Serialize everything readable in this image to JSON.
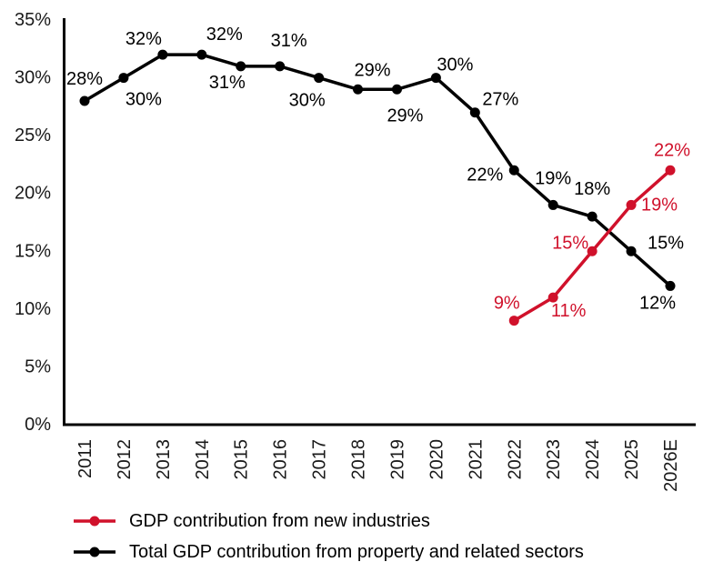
{
  "chart_data": {
    "type": "line",
    "title": "",
    "xlabel": "",
    "ylabel": "",
    "grid": false,
    "legend_position": "bottom-left",
    "value_suffix": "%",
    "categories": [
      "2011",
      "2012",
      "2013",
      "2014",
      "2015",
      "2016",
      "2017",
      "2018",
      "2019",
      "2020",
      "2021",
      "2022",
      "2023",
      "2024",
      "2025",
      "2026E"
    ],
    "y_axis": {
      "min": 0,
      "max": 35,
      "ticks": [
        {
          "value": 0,
          "label": "0%"
        },
        {
          "value": 5,
          "label": "5%"
        },
        {
          "value": 10,
          "label": "10%"
        },
        {
          "value": 15,
          "label": "15%"
        },
        {
          "value": 20,
          "label": "20%"
        },
        {
          "value": 25,
          "label": "25%"
        },
        {
          "value": 30,
          "label": "30%"
        },
        {
          "value": 35,
          "label": "35%"
        }
      ]
    },
    "series": [
      {
        "id": "new-industries",
        "name": "GDP contribution from new industries",
        "color": "#d0112b",
        "values": [
          null,
          null,
          null,
          null,
          null,
          null,
          null,
          null,
          null,
          null,
          null,
          9,
          11,
          15,
          19,
          22
        ],
        "label_offsets": [
          null,
          null,
          null,
          null,
          null,
          null,
          null,
          null,
          null,
          null,
          null,
          [
            -8,
            -19
          ],
          [
            17,
            15
          ],
          [
            -24,
            -9
          ],
          [
            31,
            0
          ],
          [
            2,
            -22
          ]
        ]
      },
      {
        "id": "property-sectors",
        "name": "Total GDP contribution from property and related sectors",
        "color": "#000000",
        "values": [
          28,
          30,
          32,
          32,
          31,
          31,
          30,
          29,
          29,
          30,
          27,
          22,
          19,
          18,
          15,
          12
        ],
        "label_offsets": [
          [
            0,
            -24
          ],
          [
            22,
            24
          ],
          [
            -21,
            -17
          ],
          [
            25,
            -22
          ],
          [
            -15,
            18
          ],
          [
            10,
            -28
          ],
          [
            -13,
            25
          ],
          [
            16,
            -21
          ],
          [
            9,
            29
          ],
          [
            21,
            -14
          ],
          [
            28,
            -14
          ],
          [
            -32,
            5
          ],
          [
            0,
            -29
          ],
          [
            0,
            -30
          ],
          [
            38,
            -9
          ],
          [
            -14,
            19
          ]
        ]
      }
    ]
  }
}
